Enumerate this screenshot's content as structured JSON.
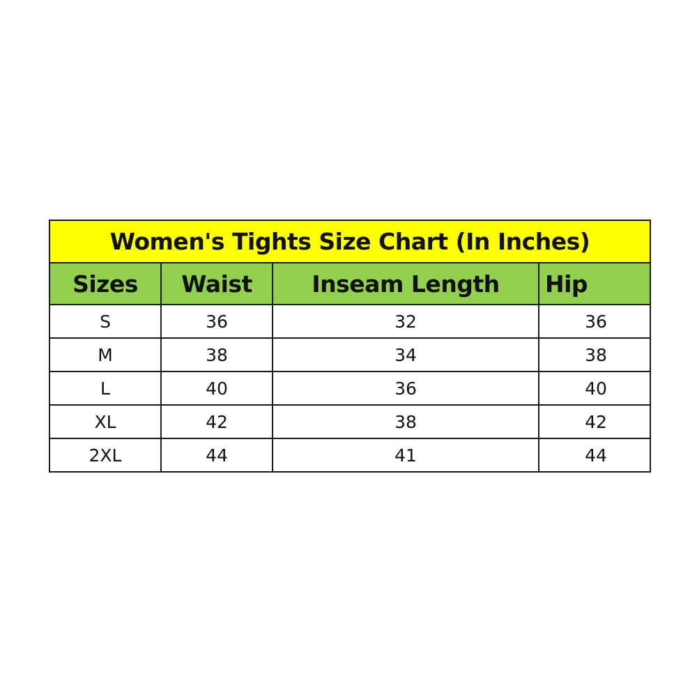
{
  "title": "Women's Tights Size Chart (In Inches)",
  "colors": {
    "title_bg": "#ffff00",
    "header_bg": "#92d050"
  },
  "headers": [
    "Sizes",
    "Waist",
    "Inseam Length",
    "Hip"
  ],
  "rows": [
    [
      "S",
      "36",
      "32",
      "36"
    ],
    [
      "M",
      "38",
      "34",
      "38"
    ],
    [
      "L",
      "40",
      "36",
      "40"
    ],
    [
      "XL",
      "42",
      "38",
      "42"
    ],
    [
      "2XL",
      "44",
      "41",
      "44"
    ]
  ]
}
